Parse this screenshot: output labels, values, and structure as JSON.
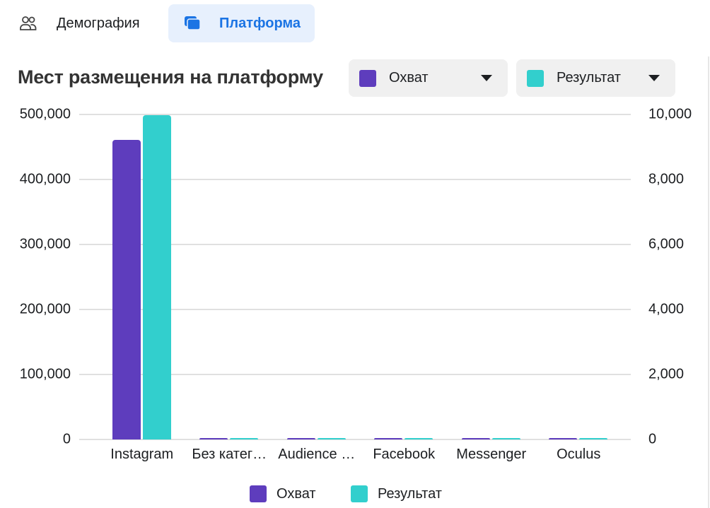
{
  "tabs": [
    {
      "label": "Демография",
      "icon": "people-icon",
      "active": false
    },
    {
      "label": "Платформа",
      "icon": "platform-icon",
      "active": true
    }
  ],
  "title": "Мест размещения на платформу",
  "selectors": [
    {
      "label": "Охват",
      "color": "#5e3dbd"
    },
    {
      "label": "Результат",
      "color": "#32cfcd"
    }
  ],
  "legend": [
    {
      "label": "Охват",
      "color": "#5e3dbd"
    },
    {
      "label": "Результат",
      "color": "#32cfcd"
    }
  ],
  "axes": {
    "left_ticks": [
      "500,000",
      "400,000",
      "300,000",
      "200,000",
      "100,000",
      "0"
    ],
    "right_ticks": [
      "10,000",
      "8,000",
      "6,000",
      "4,000",
      "2,000",
      "0"
    ]
  },
  "chart_data": {
    "type": "bar",
    "title": "Мест размещения на платформу",
    "categories": [
      "Instagram",
      "Без категории",
      "Audience Network",
      "Facebook",
      "Messenger",
      "Oculus"
    ],
    "category_labels_display": [
      "Instagram",
      "Без катег…",
      "Audience …",
      "Facebook",
      "Messenger",
      "Oculus"
    ],
    "series": [
      {
        "name": "Охват",
        "axis": "left",
        "color": "#5e3dbd",
        "values": [
          461000,
          0,
          0,
          0,
          0,
          0
        ]
      },
      {
        "name": "Результат",
        "axis": "right",
        "color": "#32cfcd",
        "values": [
          9980,
          0,
          0,
          0,
          0,
          0
        ]
      }
    ],
    "xlabel": "",
    "ylabel_left": "",
    "ylabel_right": "",
    "ylim_left": [
      0,
      500000
    ],
    "ylim_right": [
      0,
      10000
    ],
    "grid": true,
    "legend_position": "bottom"
  }
}
